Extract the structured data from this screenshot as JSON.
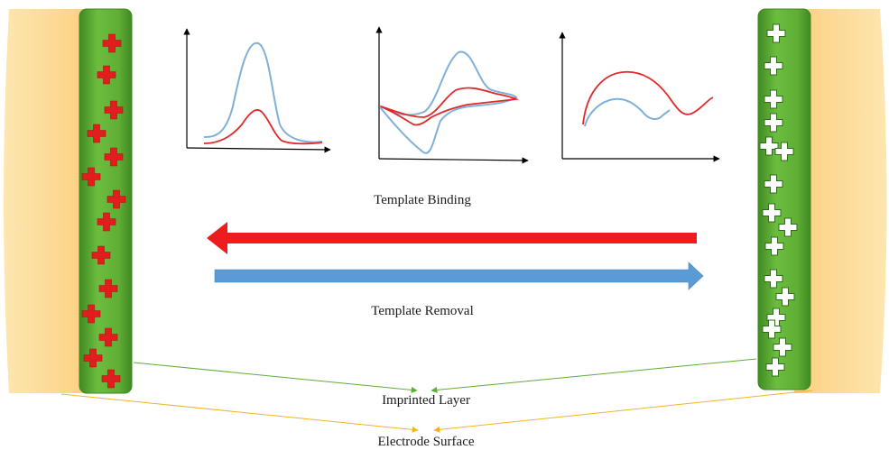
{
  "labels": {
    "template_binding": "Template Binding",
    "template_removal": "Template Removal",
    "imprinted_layer": "Imprinted Layer",
    "electrode_surface": "Electrode Surface"
  },
  "colors": {
    "electrode": "#fcd686",
    "electrode_edge": "#f2c46a",
    "layer": "#5fae35",
    "layer_dark": "#3f8a22",
    "plus_red": "#e11d1d",
    "plus_white": "#ffffff",
    "binding_arrow": "#ee1c1c",
    "removal_arrow": "#5b9bd5",
    "curve_blue": "#7fb0d8",
    "curve_red": "#e02a2a",
    "pointer_green": "#5fae35",
    "pointer_yellow": "#f0b429"
  },
  "icons": {
    "left_layer_marks": "red-plus-icon",
    "right_layer_marks": "white-plus-icon"
  }
}
